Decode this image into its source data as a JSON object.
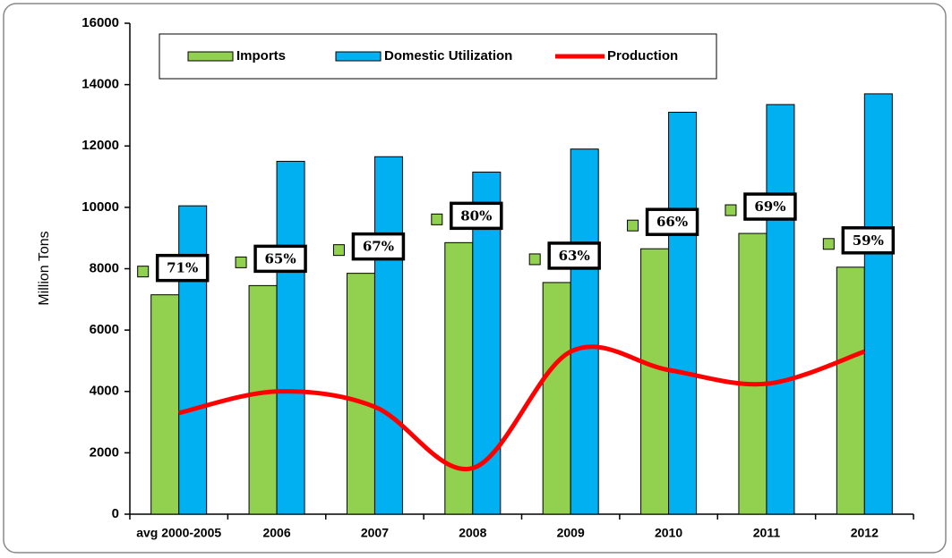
{
  "chart_data": {
    "type": "bar",
    "y_label": "Million Tons",
    "categories": [
      "avg 2000-2005",
      "2006",
      "2007",
      "2008",
      "2009",
      "2010",
      "2011",
      "2012"
    ],
    "series": [
      {
        "name": "Imports",
        "type": "bar",
        "color": "#92d050",
        "values": [
          7150,
          7450,
          7850,
          8850,
          7550,
          8650,
          9150,
          8050
        ]
      },
      {
        "name": "Domestic Utilization",
        "type": "bar",
        "color": "#00b0f0",
        "values": [
          10050,
          11500,
          11650,
          11150,
          11900,
          13100,
          13350,
          13700
        ]
      },
      {
        "name": "Production",
        "type": "line",
        "color": "#ff0000",
        "values": [
          3300,
          4000,
          3500,
          1500,
          5300,
          4700,
          4250,
          5300
        ]
      }
    ],
    "annotations": [
      "71%",
      "65%",
      "67%",
      "80%",
      "63%",
      "66%",
      "69%",
      "59%"
    ],
    "ylim": [
      0,
      16000
    ],
    "yticks": [
      0,
      2000,
      4000,
      6000,
      8000,
      10000,
      12000,
      14000,
      16000
    ]
  }
}
